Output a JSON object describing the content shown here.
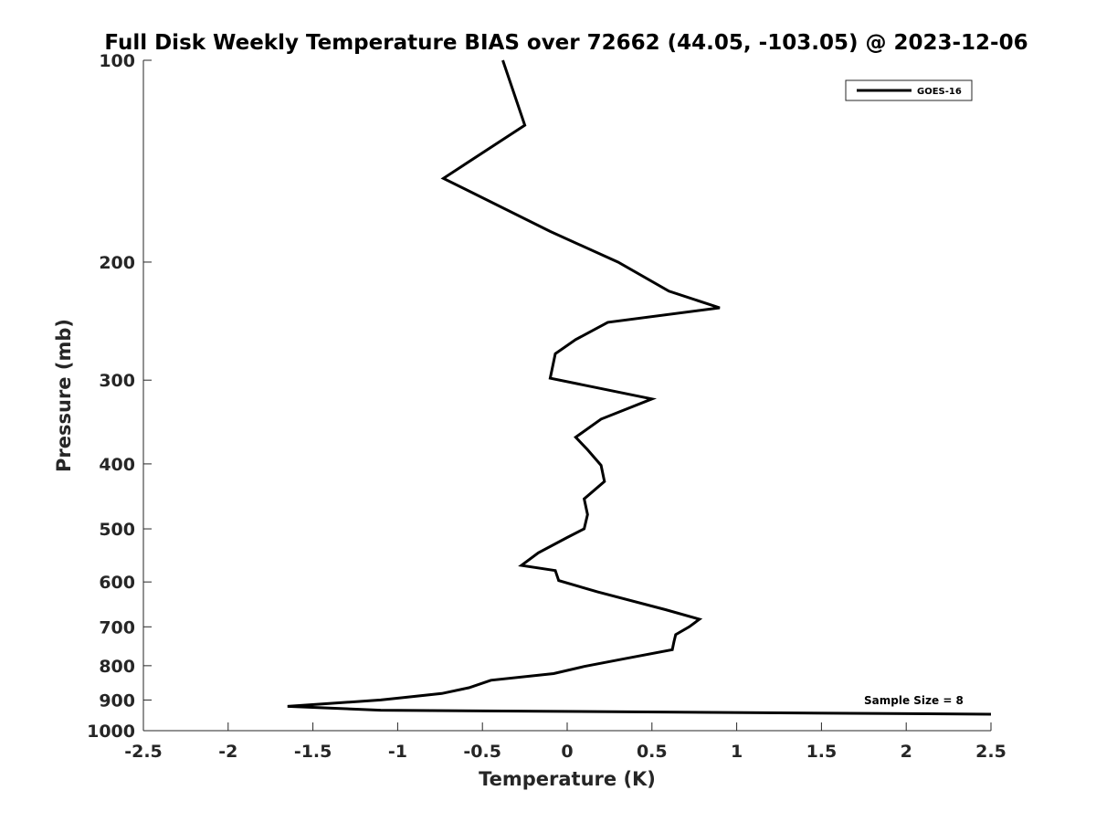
{
  "chart_data": {
    "type": "line",
    "title": "Full Disk Weekly Temperature BIAS over 72662 (44.05, -103.05) @ 2023-12-06",
    "xlabel": "Temperature (K)",
    "ylabel": "Pressure (mb)",
    "xlim": [
      -2.5,
      2.5
    ],
    "ylim": [
      100,
      1000
    ],
    "y_scale": "log",
    "y_reversed": true,
    "x_ticks": [
      "-2.5",
      "-2",
      "-1.5",
      "-1",
      "-0.5",
      "0",
      "0.5",
      "1",
      "1.5",
      "2",
      "2.5"
    ],
    "y_ticks": [
      "100",
      "200",
      "300",
      "400",
      "500",
      "600",
      "700",
      "800",
      "900",
      "1000"
    ],
    "grid": false,
    "legend_position": "top-right",
    "annotation": "Sample Size = 8",
    "series": [
      {
        "name": "GOES-16",
        "color": "#000000",
        "points": [
          [
            -0.38,
            100
          ],
          [
            -0.25,
            125
          ],
          [
            -0.73,
            150
          ],
          [
            -0.1,
            180
          ],
          [
            0.3,
            200
          ],
          [
            0.6,
            221
          ],
          [
            0.9,
            234
          ],
          [
            0.24,
            246
          ],
          [
            0.05,
            261
          ],
          [
            -0.07,
            274
          ],
          [
            -0.1,
            298
          ],
          [
            0.5,
            320
          ],
          [
            0.2,
            343
          ],
          [
            0.05,
            365
          ],
          [
            0.12,
            381
          ],
          [
            0.2,
            402
          ],
          [
            0.22,
            425
          ],
          [
            0.1,
            451
          ],
          [
            0.12,
            476
          ],
          [
            0.1,
            500
          ],
          [
            0.0,
            515
          ],
          [
            -0.17,
            543
          ],
          [
            -0.27,
            567
          ],
          [
            -0.07,
            577
          ],
          [
            -0.05,
            597
          ],
          [
            0.18,
            621
          ],
          [
            0.58,
            660
          ],
          [
            0.78,
            682
          ],
          [
            0.72,
            700
          ],
          [
            0.64,
            719
          ],
          [
            0.63,
            737
          ],
          [
            0.62,
            757
          ],
          [
            0.35,
            780
          ],
          [
            0.1,
            802
          ],
          [
            -0.08,
            822
          ],
          [
            -0.45,
            841
          ],
          [
            -0.58,
            863
          ],
          [
            -0.74,
            880
          ],
          [
            -1.1,
            900
          ],
          [
            -1.65,
            920
          ],
          [
            -1.1,
            932
          ],
          [
            2.5,
            945
          ]
        ]
      }
    ]
  }
}
